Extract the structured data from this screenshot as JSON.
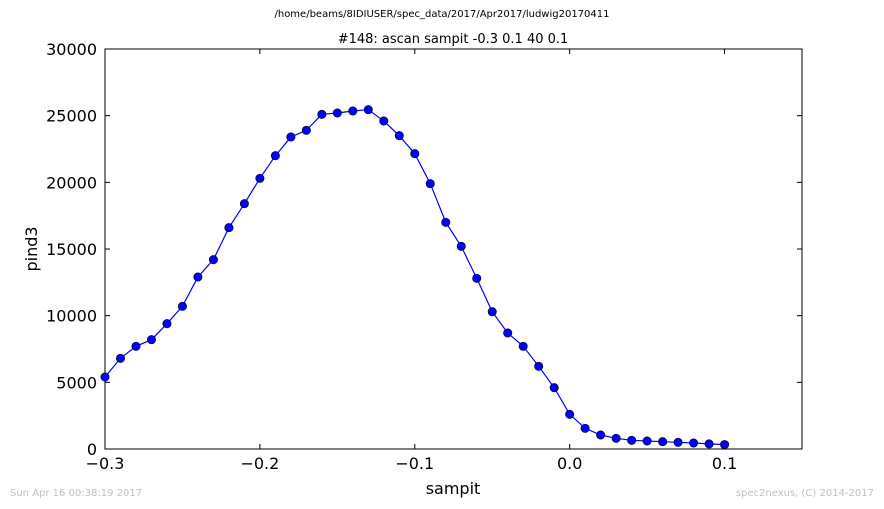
{
  "header": {
    "file_path": "/home/beams/8IDIUSER/spec_data/2017/Apr2017/ludwig20170411"
  },
  "footer": {
    "timestamp": "Sun Apr 16 00:38:19 2017",
    "credit": "spec2nexus, (C) 2014-2017"
  },
  "chart_data": {
    "type": "line",
    "title": "#148: ascan  sampit -0.3 0.1  40 0.1",
    "xlabel": "sampit",
    "ylabel": "pind3",
    "xlim": [
      -0.3,
      0.15
    ],
    "ylim": [
      0,
      30000
    ],
    "xticks": [
      -0.3,
      -0.2,
      -0.1,
      0.0,
      0.1
    ],
    "xtick_labels": [
      "−0.3",
      "−0.2",
      "−0.1",
      "0.0",
      "0.1"
    ],
    "yticks": [
      0,
      5000,
      10000,
      15000,
      20000,
      25000,
      30000
    ],
    "ytick_labels": [
      "0",
      "5000",
      "10000",
      "15000",
      "20000",
      "25000",
      "30000"
    ],
    "grid": false,
    "colors": {
      "series": "#0000ff",
      "axes": "#000000"
    },
    "series": [
      {
        "x": [
          -0.3,
          -0.29,
          -0.28,
          -0.27,
          -0.26,
          -0.25,
          -0.24,
          -0.23,
          -0.22,
          -0.21,
          -0.2,
          -0.19,
          -0.18,
          -0.17,
          -0.16,
          -0.15,
          -0.14,
          -0.13,
          -0.12,
          -0.11,
          -0.1,
          -0.09,
          -0.08,
          -0.07,
          -0.06,
          -0.05,
          -0.04,
          -0.03,
          -0.02,
          -0.01,
          0.0,
          0.01,
          0.02,
          0.03,
          0.04,
          0.05,
          0.06,
          0.07,
          0.08,
          0.09,
          0.1
        ],
        "y": [
          5400,
          6800,
          7700,
          8200,
          9400,
          10700,
          12900,
          14200,
          16600,
          18400,
          20300,
          22000,
          23400,
          23900,
          25100,
          25200,
          25350,
          25450,
          24600,
          23500,
          22150,
          19900,
          17000,
          15200,
          12800,
          10300,
          8700,
          7700,
          6200,
          4600,
          2600,
          1550,
          1050,
          800,
          650,
          600,
          550,
          500,
          450,
          380,
          330
        ]
      }
    ]
  }
}
